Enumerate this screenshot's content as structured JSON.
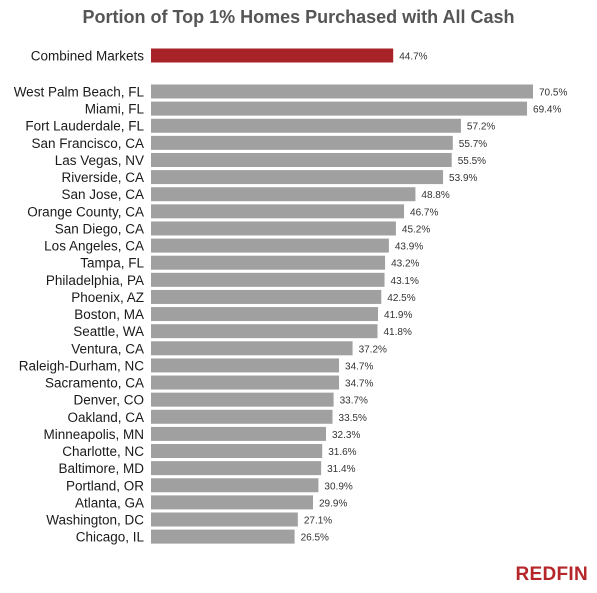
{
  "chart_data": {
    "type": "bar",
    "orientation": "horizontal",
    "title": "Portion of Top 1% Homes Purchased with All Cash",
    "xlabel": "",
    "ylabel": "",
    "xlim": [
      0,
      70.5
    ],
    "grid": false,
    "highlight_color": "#a82327",
    "bar_color": "#a0a0a0",
    "highlight": {
      "category": "Combined Markets",
      "value": 44.7,
      "label": "44.7%"
    },
    "categories": [
      "West Palm Beach, FL",
      "Miami, FL",
      "Fort Lauderdale, FL",
      "San Francisco, CA",
      "Las Vegas, NV",
      "Riverside, CA",
      "San Jose, CA",
      "Orange County, CA",
      "San Diego, CA",
      "Los Angeles, CA",
      "Tampa, FL",
      "Philadelphia, PA",
      "Phoenix, AZ",
      "Boston, MA",
      "Seattle, WA",
      "Ventura, CA",
      "Raleigh-Durham, NC",
      "Sacramento, CA",
      "Denver, CO",
      "Oakland, CA",
      "Minneapolis, MN",
      "Charlotte, NC",
      "Baltimore, MD",
      "Portland, OR",
      "Atlanta, GA",
      "Washington, DC",
      "Chicago, IL"
    ],
    "values": [
      70.5,
      69.4,
      57.2,
      55.7,
      55.5,
      53.9,
      48.8,
      46.7,
      45.2,
      43.9,
      43.2,
      43.1,
      42.5,
      41.9,
      41.8,
      37.2,
      34.7,
      34.7,
      33.7,
      33.5,
      32.3,
      31.6,
      31.4,
      30.9,
      29.9,
      27.1,
      26.5
    ],
    "labels": [
      "70.5%",
      "69.4%",
      "57.2%",
      "55.7%",
      "55.5%",
      "53.9%",
      "48.8%",
      "46.7%",
      "45.2%",
      "43.9%",
      "43.2%",
      "43.1%",
      "42.5%",
      "41.9%",
      "41.8%",
      "37.2%",
      "34.7%",
      "34.7%",
      "33.7%",
      "33.5%",
      "32.3%",
      "31.6%",
      "31.4%",
      "30.9%",
      "29.9%",
      "27.1%",
      "26.5%"
    ]
  },
  "brand": {
    "logo_text": "REDFIN",
    "color": "#b5262b"
  }
}
